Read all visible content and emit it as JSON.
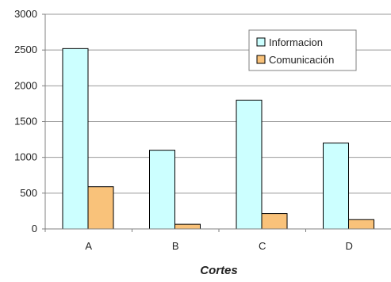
{
  "chart_data": {
    "type": "bar",
    "title": "",
    "xlabel": "Cortes",
    "ylabel": "",
    "categories": [
      "A",
      "B",
      "C",
      "D"
    ],
    "ylim": [
      0,
      3000
    ],
    "yticks": [
      0,
      500,
      1000,
      1500,
      2000,
      2500,
      3000
    ],
    "grid": true,
    "legend_position": "top-right",
    "series": [
      {
        "name": "Informacion",
        "values": [
          2520,
          1100,
          1800,
          1200
        ],
        "color": "#ccffff"
      },
      {
        "name": "Comunicación",
        "values": [
          590,
          65,
          215,
          130
        ],
        "color": "#f9c27a"
      }
    ]
  }
}
